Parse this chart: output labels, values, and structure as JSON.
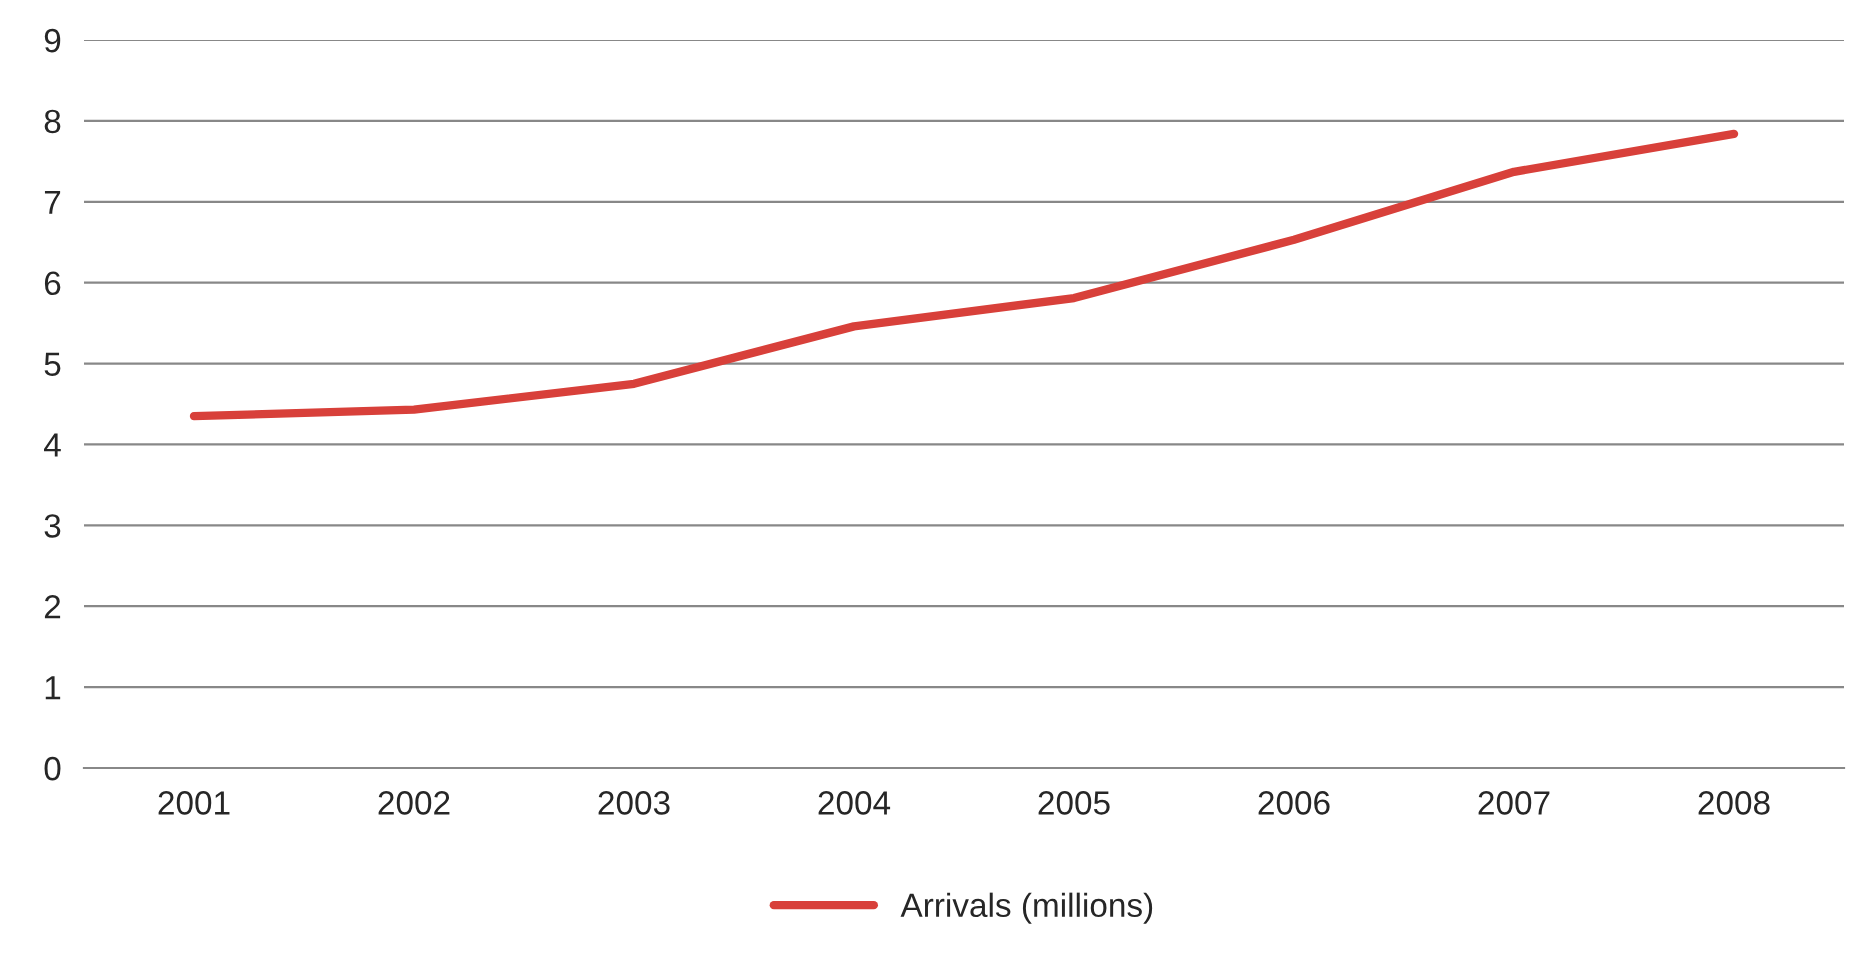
{
  "chart_data": {
    "type": "line",
    "categories": [
      "2001",
      "2002",
      "2003",
      "2004",
      "2005",
      "2006",
      "2007",
      "2008"
    ],
    "series": [
      {
        "name": "Arrivals (millions)",
        "color": "#d8403a",
        "values": [
          4.35,
          4.43,
          4.75,
          5.46,
          5.81,
          6.53,
          7.37,
          7.84
        ]
      }
    ],
    "ylim": [
      0,
      9
    ],
    "yticks": [
      0,
      1,
      2,
      3,
      4,
      5,
      6,
      7,
      8,
      9
    ],
    "grid": "y",
    "legend": "bottom",
    "marker": "none",
    "line_style": "solid"
  }
}
